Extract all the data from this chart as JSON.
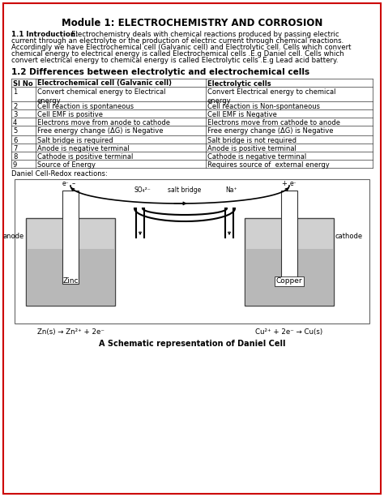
{
  "title": "Module 1: ELECTROCHEMISTRY AND CORROSION",
  "intro_label": "1.1 Introduction:",
  "intro_text": "Electrochemistry deals with chemical reactions produced by passing electric current through an electrolyte or the production of electric current through chemical reactions. Accordingly we have Electrochemical cell (Galvanic cell) and Electrolytic cell. Cells which convert chemical energy to electrical energy is called Electrochemical cells .E.g Daniel cell. Cells which convert electrical energy to chemical energy is called Electrolytic cells .E.g Lead acid battery.",
  "table_title": "1.2 Differences between electrolytic and electrochemical cells",
  "table_headers": [
    "Sl No",
    "Electrochemical cell (Galvanic cell)",
    "Electrolytic cells"
  ],
  "table_rows": [
    [
      "1",
      "Convert chemical energy to Electrical\nenergy",
      "Convert Electrical energy to chemical\nenergy"
    ],
    [
      "2",
      "Cell reaction is spontaneous",
      "Cell reaction is Non-spontaneous"
    ],
    [
      "3",
      "Cell EMF is positive",
      "Cell EMF is Negative"
    ],
    [
      "4",
      "Electrons move from anode to cathode",
      "Electrons move from cathode to anode"
    ],
    [
      "5",
      "Free energy change (ΔG) is Negative",
      "Free energy change (ΔG) is Negative"
    ],
    [
      "6",
      "Salt bridge is required",
      "Salt bridge is not required"
    ],
    [
      "7",
      "Anode is negative terminal",
      "Anode is positive terminal"
    ],
    [
      "8",
      "Cathode is positive terminal",
      "Cathode is negative terminal"
    ],
    [
      "9",
      "Source of Energy",
      "Requires source of  external energy"
    ]
  ],
  "daniel_label": "Daniel Cell-Redox reactions:",
  "caption": "A Schematic representation of Daniel Cell",
  "border_color": "#cc0000",
  "bg_color": "#ffffff",
  "text_color": "#000000"
}
